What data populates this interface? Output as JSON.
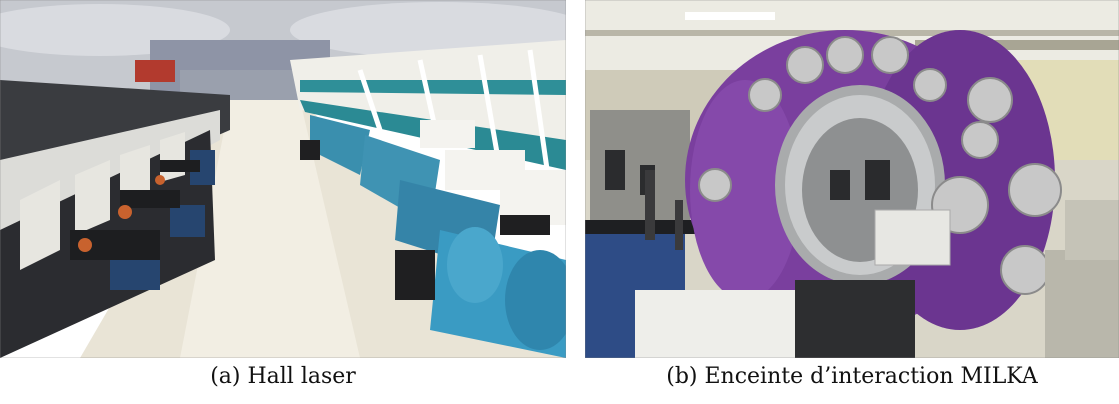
{
  "figures": [
    {
      "label": "(a) Hall laser"
    },
    {
      "label": "(b) Enceinte d’interaction MILKA"
    }
  ],
  "colors": {
    "hall_floor": "#e9e4d6",
    "hall_ceiling": "#c9ccd2",
    "beam_tube_teal": "#2b8a94",
    "amplifier_blue": "#3f93b3",
    "chamber_purple": "#7a3f9e",
    "optics_table_blue": "#2e4c86",
    "metal_silver": "#c8c8c8"
  },
  "icons": [
    "hall-laser-photo",
    "milka-chamber-photo"
  ]
}
